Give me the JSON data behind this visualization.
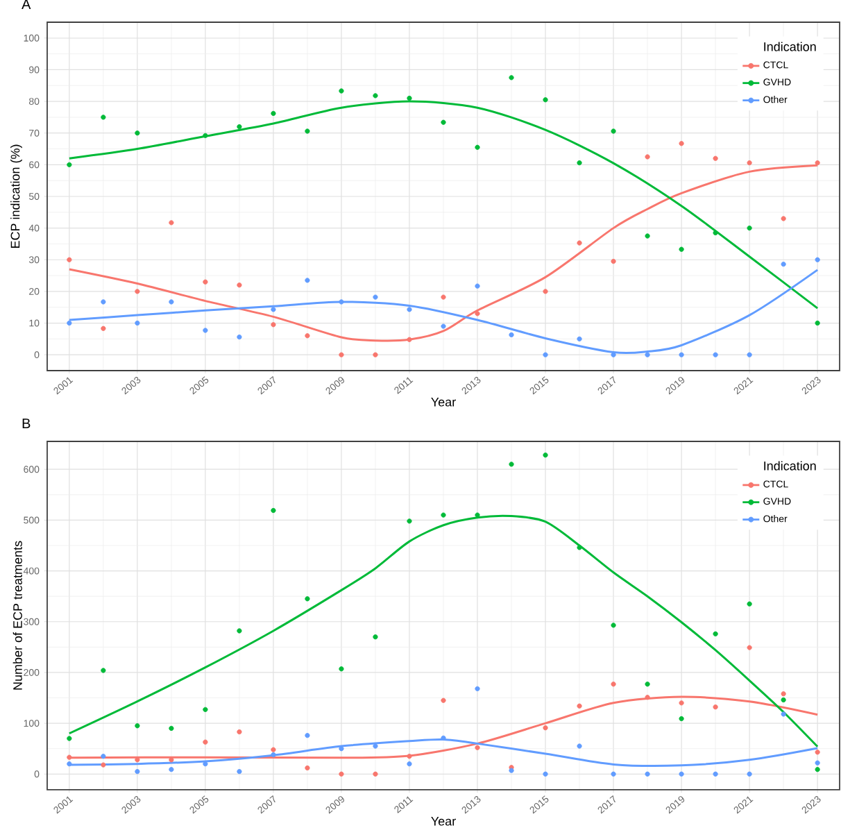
{
  "chart_data": [
    {
      "type": "scatter",
      "title": "A",
      "xlabel": "Year",
      "ylabel": "ECP indication (%)",
      "legend_title": "Indication",
      "legend": "top right",
      "grid": true,
      "x": [
        2001,
        2002,
        2003,
        2004,
        2005,
        2006,
        2007,
        2008,
        2009,
        2010,
        2011,
        2012,
        2013,
        2014,
        2015,
        2016,
        2017,
        2018,
        2019,
        2020,
        2021,
        2022,
        2023
      ],
      "xlim": [
        2000.35,
        2023.65
      ],
      "xticks": [
        2001,
        2003,
        2005,
        2007,
        2009,
        2011,
        2013,
        2015,
        2017,
        2019,
        2021,
        2023
      ],
      "ylim": [
        -5,
        105
      ],
      "yticks": [
        0,
        10,
        20,
        30,
        40,
        50,
        60,
        70,
        80,
        90,
        100
      ],
      "series": [
        {
          "name": "CTCL",
          "marker": "circle",
          "color": "#f8766d",
          "values": [
            30,
            8.3,
            20,
            41.7,
            23,
            22,
            9.5,
            6,
            0,
            0,
            4.8,
            18.2,
            13,
            null,
            20,
            35.3,
            29.5,
            62.5,
            66.7,
            62,
            60.6,
            43,
            60.6
          ]
        },
        {
          "name": "GVHD",
          "marker": "circle",
          "color": "#00ba38",
          "values": [
            60,
            75,
            70,
            null,
            69.2,
            72,
            76.2,
            70.6,
            83.3,
            81.8,
            81,
            73.4,
            65.5,
            87.5,
            80.5,
            60.6,
            70.6,
            37.5,
            33.3,
            38.5,
            40,
            null,
            10
          ]
        },
        {
          "name": "Other",
          "marker": "circle",
          "color": "#619cff",
          "values": [
            10,
            16.7,
            10,
            16.7,
            7.7,
            5.6,
            14.3,
            23.5,
            16.7,
            18.2,
            14.3,
            9,
            21.7,
            6.3,
            0,
            5,
            0,
            0,
            0,
            0,
            0,
            28.6,
            30
          ]
        },
        {
          "type": "line",
          "line_style": "solid",
          "color": "#f8766d",
          "x": [
            2001,
            2003,
            2005,
            2007,
            2009,
            2010,
            2011,
            2012,
            2013,
            2015,
            2017,
            2018,
            2019,
            2021,
            2023
          ],
          "values": [
            27,
            22.5,
            17,
            12,
            5.5,
            4.5,
            4.8,
            7.5,
            14,
            24.5,
            40,
            46,
            51,
            57.8,
            59.8
          ]
        },
        {
          "type": "line",
          "line_style": "solid",
          "color": "#00ba38",
          "x": [
            2001,
            2003,
            2005,
            2007,
            2009,
            2011,
            2013,
            2015,
            2017,
            2019,
            2021,
            2023
          ],
          "values": [
            62,
            65,
            69,
            73,
            78,
            80,
            78,
            71,
            60.5,
            47,
            31,
            14.7
          ]
        },
        {
          "type": "line",
          "line_style": "solid",
          "color": "#619cff",
          "x": [
            2001,
            2003,
            2005,
            2007,
            2009,
            2011,
            2013,
            2015,
            2017,
            2018,
            2019,
            2021,
            2023
          ],
          "values": [
            11,
            12.5,
            14,
            15.3,
            16.7,
            15.5,
            11,
            5.2,
            0.8,
            1,
            3,
            12.5,
            26.8
          ]
        }
      ]
    },
    {
      "type": "scatter",
      "title": "B",
      "xlabel": "Year",
      "ylabel": "Number of ECP treatments",
      "legend_title": "Indication",
      "legend": "top right",
      "grid": true,
      "x": [
        2001,
        2002,
        2003,
        2004,
        2005,
        2006,
        2007,
        2008,
        2009,
        2010,
        2011,
        2012,
        2013,
        2014,
        2015,
        2016,
        2017,
        2018,
        2019,
        2020,
        2021,
        2022,
        2023
      ],
      "xlim": [
        2000.35,
        2023.65
      ],
      "xticks": [
        2001,
        2003,
        2005,
        2007,
        2009,
        2011,
        2013,
        2015,
        2017,
        2019,
        2021,
        2023
      ],
      "ylim": [
        -31,
        655
      ],
      "yticks": [
        0,
        100,
        200,
        300,
        400,
        500,
        600
      ],
      "series": [
        {
          "name": "CTCL",
          "marker": "circle",
          "color": "#f8766d",
          "values": [
            33,
            18,
            28,
            28,
            63,
            83,
            48,
            12,
            0,
            0,
            35,
            145,
            52,
            13,
            91,
            134,
            177,
            151,
            140,
            132,
            249,
            158,
            43
          ]
        },
        {
          "name": "GVHD",
          "marker": "circle",
          "color": "#00ba38",
          "values": [
            70,
            204,
            95,
            90,
            127,
            282,
            519,
            345,
            207,
            270,
            498,
            510,
            510,
            610,
            628,
            446,
            293,
            177,
            109,
            276,
            335,
            146,
            9
          ]
        },
        {
          "name": "Other",
          "marker": "circle",
          "color": "#619cff",
          "values": [
            20,
            35,
            5,
            9,
            20,
            5,
            38,
            76,
            50,
            55,
            20,
            71,
            168,
            7,
            0,
            55,
            0,
            0,
            0,
            0,
            0,
            118,
            22
          ]
        },
        {
          "type": "line",
          "line_style": "solid",
          "color": "#f8766d",
          "x": [
            2001,
            2005,
            2009,
            2011,
            2013,
            2015,
            2017,
            2019,
            2021,
            2023
          ],
          "values": [
            32,
            33,
            32,
            36,
            60,
            100,
            140,
            152,
            143,
            117
          ]
        },
        {
          "type": "line",
          "line_style": "solid",
          "color": "#00ba38",
          "x": [
            2001,
            2003,
            2005,
            2007,
            2009,
            2010,
            2011,
            2012,
            2013,
            2014,
            2015,
            2016,
            2017,
            2018,
            2019,
            2020,
            2021,
            2022,
            2023
          ],
          "values": [
            80,
            143,
            210,
            282,
            362,
            405,
            458,
            490,
            505,
            508,
            497,
            450,
            397,
            350,
            299,
            244,
            184,
            122,
            54
          ]
        },
        {
          "type": "line",
          "line_style": "solid",
          "color": "#619cff",
          "x": [
            2001,
            2003,
            2005,
            2007,
            2009,
            2011,
            2012,
            2013,
            2015,
            2017,
            2019,
            2021,
            2023
          ],
          "values": [
            18,
            20,
            25,
            37,
            55,
            65,
            68,
            60,
            40,
            19,
            17,
            28,
            51
          ]
        }
      ]
    }
  ]
}
